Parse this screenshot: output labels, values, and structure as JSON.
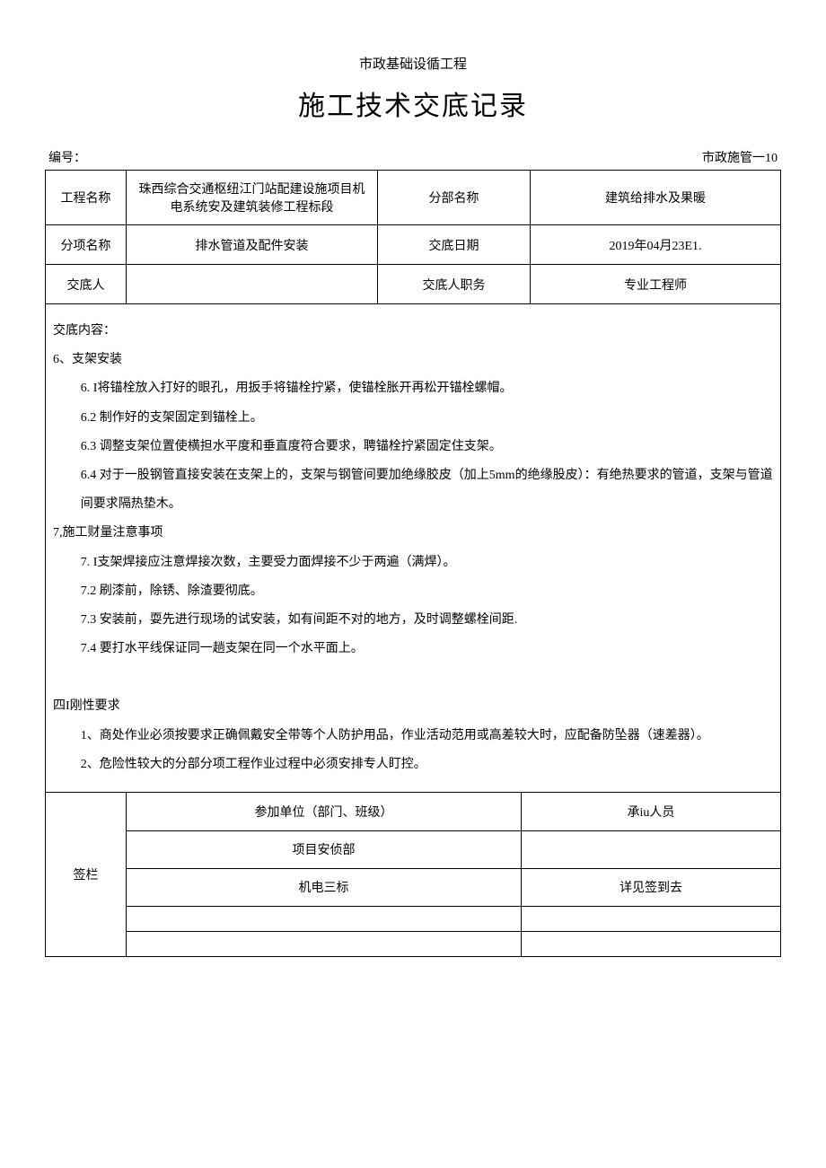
{
  "header": {
    "subtitle": "市政基础设循工程",
    "title": "施工技术交底记录",
    "doc_no_label": "编号：",
    "doc_no_value": "市政施管一10"
  },
  "info": {
    "project_name_label": "工程名称",
    "project_name_value": "珠西综合交通枢纽江门站配建设施项目机电系统安及建筑装修工程标段",
    "section_label": "分部名称",
    "section_value": "建筑给排水及果暖",
    "item_label": "分项名称",
    "item_value": "排水管道及配件安装",
    "date_label": "交底日期",
    "date_value": "2019年04月23E1.",
    "person_label": "交底人",
    "person_value": "",
    "job_label": "交底人职务",
    "job_value": "专业工程师"
  },
  "content": {
    "heading": "交底内容：",
    "s6_title": "6、支架安装",
    "s6_1": "6. I将锚栓放入打好的眼孔，用扳手将锚栓拧紧，使锚栓胀开再松开锚栓螺帽。",
    "s6_2": "6.2  制作好的支架固定到锚栓上。",
    "s6_3": "6.3  调整支架位置使横担水平度和垂直度符合要求，聘锚栓拧紧固定住支架。",
    "s6_4": "6.4 对于一股钢管直接安装在支架上的，支架与钢管间要加绝缘胶皮（加上5mm的绝缘股皮）：有绝热要求的管道，支架与管道间要求隔热垫木。",
    "s7_title": "7,施工财量注意事项",
    "s7_1": "7. I支架焊接应注意焊接次数，主要受力面焊接不少于两遍（满焊）。",
    "s7_2": "7.2  刷漆前，除锈、除渣要彻底。",
    "s7_3": "7.3  安装前，耍先进行现场的试安装，如有间距不对的地方，及时调整螺栓间距.",
    "s7_4": "7.4  要打水平线保证同一趟支架在同一个水平面上。",
    "s4_title": "四I刚性要求",
    "s4_1": "1、商处作业必须按要求正确佩戴安全带等个人防护用品，作业活动范用或高差较大时，应配备防坠器（速差器）。",
    "s4_2": "2、危险性较大的分部分项工程作业过程中必须安排专人盯控。"
  },
  "signature": {
    "col_label": "签栏",
    "participant_header": "参加单位（部门、班级）",
    "person_header": "承iu人员",
    "row1_unit": "项目安侦部",
    "row1_person": "",
    "row2_unit": "机电三标",
    "row2_person": "详见签到去",
    "row3_unit": "",
    "row3_person": ""
  },
  "styles": {
    "text_color": "#000000",
    "border_color": "#000000",
    "background_color": "#ffffff",
    "body_font_size": 14,
    "title_font_size": 30,
    "subtitle_font_size": 15,
    "line_height": 2.3
  }
}
